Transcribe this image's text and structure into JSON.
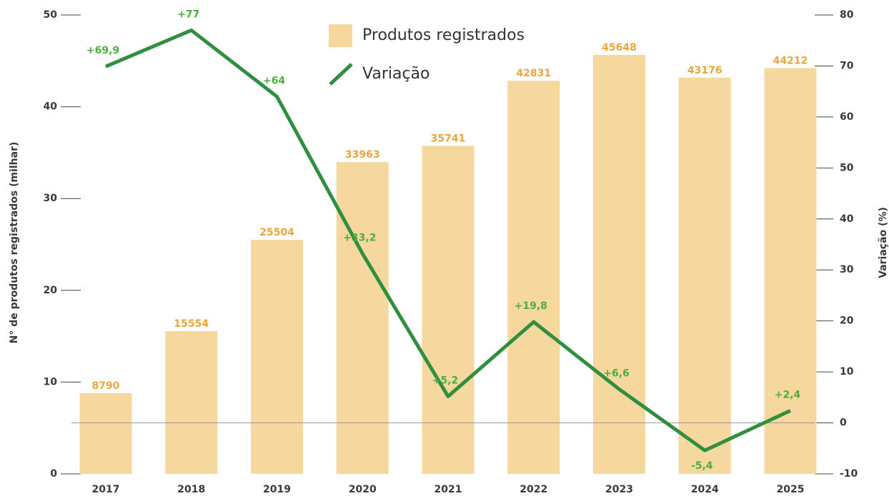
{
  "chart_data": {
    "type": "bar",
    "y_axis_label": "N° de produtos registrados (milhar)",
    "y2_axis_label": "Variação (%)",
    "categories": [
      "2017",
      "2018",
      "2019",
      "2020",
      "2021",
      "2022",
      "2023",
      "2024",
      "2025"
    ],
    "series": [
      {
        "name": "Produtos registrados",
        "type": "bar",
        "color": "#f6d89e",
        "label_color": "#e9a63c",
        "values": [
          8.79,
          15.554,
          25.504,
          33.963,
          35.741,
          42.831,
          45.648,
          43.176,
          44.212
        ],
        "value_labels": [
          "8790",
          "15554",
          "25504",
          "33963",
          "35741",
          "42831",
          "45648",
          "43176",
          "44212"
        ]
      },
      {
        "name": "Variação",
        "type": "line",
        "axis": "y2",
        "color": "#2f8f3f",
        "label_color": "#4cae3c",
        "values": [
          69.9,
          77,
          64,
          33.2,
          5.2,
          19.8,
          6.6,
          -5.4,
          2.4
        ],
        "value_labels": [
          "+69,9",
          "+77",
          "+64",
          "+33,2",
          "+5,2",
          "+19,8",
          "+6,6",
          "-5,4",
          "+2,4"
        ]
      }
    ],
    "ylim": [
      0,
      50
    ],
    "yticks": [
      0,
      10,
      20,
      30,
      40,
      50
    ],
    "y2lim": [
      -10,
      80
    ],
    "y2ticks": [
      -10,
      0,
      10,
      20,
      30,
      40,
      50,
      60,
      70,
      80
    ]
  }
}
